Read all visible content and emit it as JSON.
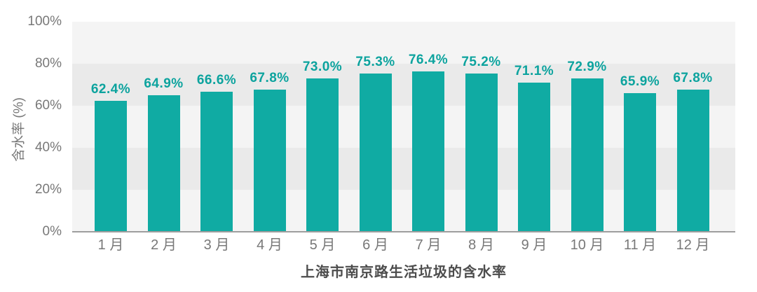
{
  "chart_data": {
    "type": "bar",
    "title": "上海市南京路生活垃圾的含水率",
    "ylabel": "含水率 (%)",
    "categories": [
      "1 月",
      "2 月",
      "3 月",
      "4 月",
      "5 月",
      "6 月",
      "7 月",
      "8 月",
      "9 月",
      "10 月",
      "11 月",
      "12 月"
    ],
    "values": [
      62.4,
      64.9,
      66.6,
      67.8,
      73.0,
      75.3,
      76.4,
      75.2,
      71.1,
      72.9,
      65.9,
      67.8
    ],
    "value_labels": [
      "62.4%",
      "64.9%",
      "66.6%",
      "67.8%",
      "73.0%",
      "75.3%",
      "76.4%",
      "75.2%",
      "71.1%",
      "72.9%",
      "65.9%",
      "67.8%"
    ],
    "ytick_labels": [
      "100%",
      "80%",
      "60%",
      "40%",
      "20%",
      "0%"
    ],
    "ytick_values": [
      100,
      80,
      60,
      40,
      20,
      0
    ],
    "ylim": [
      0,
      100
    ],
    "legend": "none",
    "grid": "alternating horizontal bands, no gridlines"
  },
  "colors": {
    "background": "#ffffff",
    "bar": "#10aba3",
    "value_label": "#0ca39e",
    "axis_text": "#787878",
    "title_text": "#4d4d4d",
    "axis_line": "#9e9e9e",
    "band_light": "#f4f4f4",
    "band_dark": "#eaeaea"
  }
}
